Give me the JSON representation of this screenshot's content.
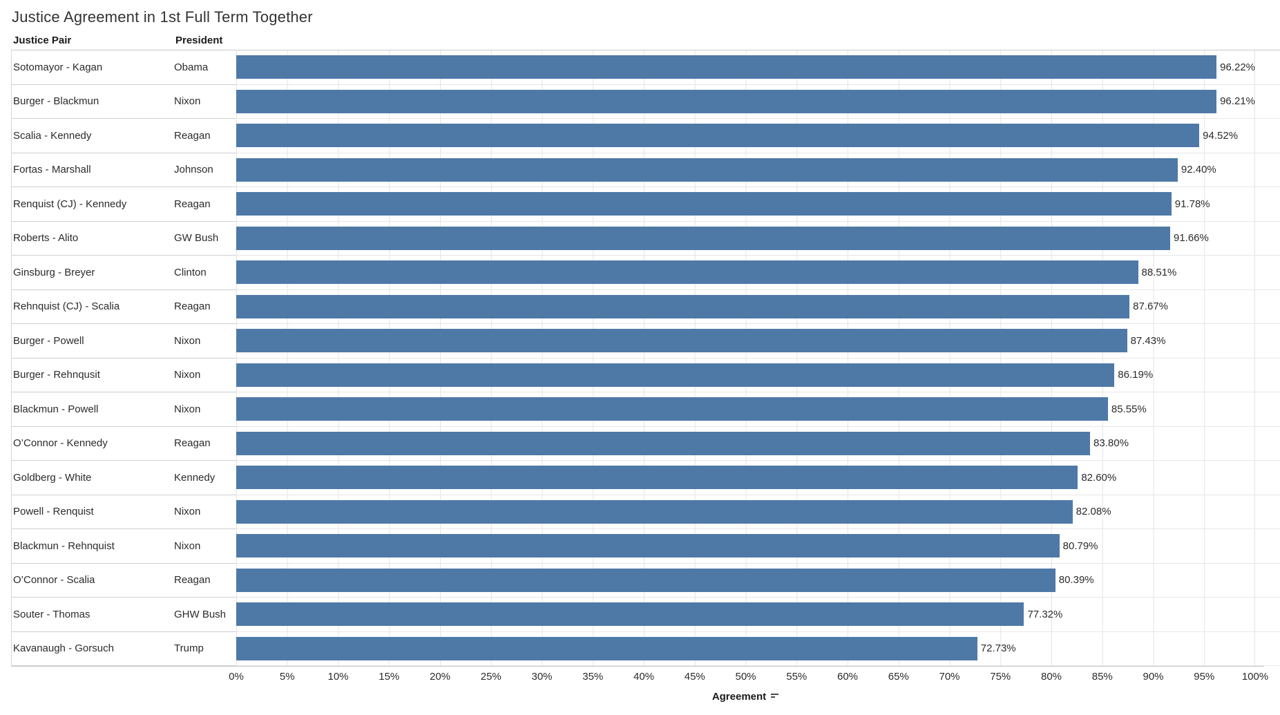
{
  "title": "Justice Agreement in 1st Full Term Together",
  "columns": {
    "justice_pair": "Justice Pair",
    "president": "President"
  },
  "axis": {
    "ticks": [
      "0%",
      "5%",
      "10%",
      "15%",
      "20%",
      "25%",
      "30%",
      "35%",
      "40%",
      "45%",
      "50%",
      "55%",
      "60%",
      "65%",
      "70%",
      "75%",
      "80%",
      "85%",
      "90%",
      "95%",
      "100%"
    ],
    "title": "Agreement",
    "sort_icon": "sort-descending"
  },
  "colors": {
    "bar": "#4e79a7",
    "gridline": "#e4e4e4",
    "divider": "#cfcfcf",
    "text": "#2b2b2b"
  },
  "rows": [
    {
      "pair": "Sotomayor - Kagan",
      "president": "Obama",
      "value": 96.22,
      "label": "96.22%"
    },
    {
      "pair": "Burger - Blackmun",
      "president": "Nixon",
      "value": 96.21,
      "label": "96.21%"
    },
    {
      "pair": "Scalia - Kennedy",
      "president": "Reagan",
      "value": 94.52,
      "label": "94.52%"
    },
    {
      "pair": "Fortas - Marshall",
      "president": "Johnson",
      "value": 92.4,
      "label": "92.40%"
    },
    {
      "pair": "Renquist (CJ) - Kennedy",
      "president": "Reagan",
      "value": 91.78,
      "label": "91.78%"
    },
    {
      "pair": "Roberts - Alito",
      "president": "GW Bush",
      "value": 91.66,
      "label": "91.66%"
    },
    {
      "pair": "Ginsburg - Breyer",
      "president": "Clinton",
      "value": 88.51,
      "label": "88.51%"
    },
    {
      "pair": "Rehnquist (CJ) - Scalia",
      "president": "Reagan",
      "value": 87.67,
      "label": "87.67%"
    },
    {
      "pair": "Burger - Powell",
      "president": "Nixon",
      "value": 87.43,
      "label": "87.43%"
    },
    {
      "pair": "Burger - Rehnqusit",
      "president": "Nixon",
      "value": 86.19,
      "label": "86.19%"
    },
    {
      "pair": "Blackmun - Powell",
      "president": "Nixon",
      "value": 85.55,
      "label": "85.55%"
    },
    {
      "pair": "O’Connor - Kennedy",
      "president": "Reagan",
      "value": 83.8,
      "label": "83.80%"
    },
    {
      "pair": "Goldberg - White",
      "president": "Kennedy",
      "value": 82.6,
      "label": "82.60%"
    },
    {
      "pair": "Powell - Renquist",
      "president": "Nixon",
      "value": 82.08,
      "label": "82.08%"
    },
    {
      "pair": "Blackmun - Rehnquist",
      "president": "Nixon",
      "value": 80.79,
      "label": "80.79%"
    },
    {
      "pair": "O’Connor - Scalia",
      "president": "Reagan",
      "value": 80.39,
      "label": "80.39%"
    },
    {
      "pair": "Souter - Thomas",
      "president": "GHW Bush",
      "value": 77.32,
      "label": "77.32%"
    },
    {
      "pair": "Kavanaugh - Gorsuch",
      "president": "Trump",
      "value": 72.73,
      "label": "72.73%"
    }
  ],
  "chart_data": {
    "type": "bar",
    "orientation": "horizontal",
    "title": "Justice Agreement in 1st Full Term Together",
    "categories": [
      "Sotomayor - Kagan",
      "Burger - Blackmun",
      "Scalia - Kennedy",
      "Fortas - Marshall",
      "Renquist (CJ) - Kennedy",
      "Roberts - Alito",
      "Ginsburg - Breyer",
      "Rehnquist (CJ) - Scalia",
      "Burger - Powell",
      "Burger - Rehnqusit",
      "Blackmun - Powell",
      "O’Connor - Kennedy",
      "Goldberg - White",
      "Powell - Renquist",
      "Blackmun - Rehnquist",
      "O’Connor - Scalia",
      "Souter - Thomas",
      "Kavanaugh - Gorsuch"
    ],
    "groups": [
      "Obama",
      "Nixon",
      "Reagan",
      "Johnson",
      "Reagan",
      "GW Bush",
      "Clinton",
      "Reagan",
      "Nixon",
      "Nixon",
      "Nixon",
      "Reagan",
      "Kennedy",
      "Nixon",
      "Nixon",
      "Reagan",
      "GHW Bush",
      "Trump"
    ],
    "values": [
      96.22,
      96.21,
      94.52,
      92.4,
      91.78,
      91.66,
      88.51,
      87.67,
      87.43,
      86.19,
      85.55,
      83.8,
      82.6,
      82.08,
      80.79,
      80.39,
      77.32,
      72.73
    ],
    "value_labels": [
      "96.22%",
      "96.21%",
      "94.52%",
      "92.40%",
      "91.78%",
      "91.66%",
      "88.51%",
      "87.67%",
      "87.43%",
      "86.19%",
      "85.55%",
      "83.80%",
      "82.60%",
      "82.08%",
      "80.79%",
      "80.39%",
      "77.32%",
      "72.73%"
    ],
    "xlabel": "Agreement",
    "ylabel": "Justice Pair / President",
    "xlim": [
      0,
      100
    ],
    "x_tick_step": 5,
    "grid": true,
    "legend": false,
    "sort": "descending"
  }
}
